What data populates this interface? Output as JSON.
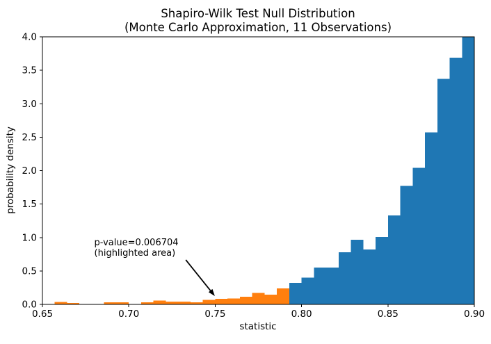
{
  "chart_data": {
    "type": "bar",
    "title": "Shapiro-Wilk Test Null Distribution",
    "subtitle": "(Monte Carlo Approximation, 11 Observations)",
    "xlabel": "statistic",
    "ylabel": "probability density",
    "xlim": [
      0.65,
      0.9
    ],
    "ylim": [
      0.0,
      4.0
    ],
    "x_ticks": [
      0.65,
      0.7,
      0.75,
      0.8,
      0.85,
      0.9
    ],
    "x_tick_labels": [
      "0.65",
      "0.70",
      "0.75",
      "0.80",
      "0.85",
      "0.90"
    ],
    "y_ticks": [
      0.0,
      0.5,
      1.0,
      1.5,
      2.0,
      2.5,
      3.0,
      3.5,
      4.0
    ],
    "y_tick_labels": [
      "0.0",
      "0.5",
      "1.0",
      "1.5",
      "2.0",
      "2.5",
      "3.0",
      "3.5",
      "4.0"
    ],
    "grid": false,
    "legend": null,
    "bin_start": 0.65,
    "bin_width": 0.007142857,
    "heights": [
      0,
      0.038,
      0.022,
      0,
      0,
      0.03,
      0.03,
      0,
      0.03,
      0.058,
      0.044,
      0.044,
      0.03,
      0.068,
      0.082,
      0.09,
      0.115,
      0.17,
      0.145,
      0.238,
      0.32,
      0.4,
      0.55,
      0.55,
      0.78,
      0.965,
      0.82,
      1.01,
      1.33,
      1.77,
      2.04,
      2.57,
      3.37,
      3.69,
      4.0
    ],
    "highlight_split_index": 20,
    "highlight_region_end_statistic": 0.7929,
    "colors": {
      "bar": "#1f77b4",
      "highlight": "#ff7f0e",
      "axis": "#000000",
      "background": "#ffffff"
    },
    "annotation": {
      "text_line1": "p-value=0.006704",
      "text_line2": "(highlighted area)",
      "text_x": 0.68,
      "text_y": 1.0,
      "arrow_from_x": 0.733,
      "arrow_from_y": 0.665,
      "arrow_to_x": 0.7498,
      "arrow_to_y": 0.125
    }
  }
}
